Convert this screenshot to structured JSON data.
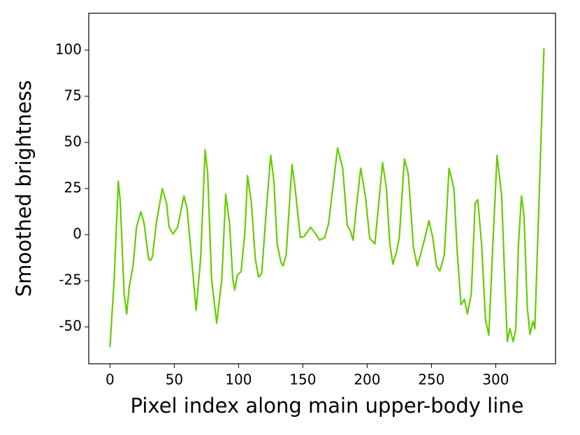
{
  "chart_data": {
    "type": "line",
    "x_label": "Pixel index along main upper-body line",
    "y_label": "Smoothed brightness",
    "color": "#66cc00",
    "x": [
      0,
      3.3,
      6.5,
      8,
      11,
      13,
      15,
      18,
      20.6,
      24,
      26.6,
      30,
      31.5,
      33,
      36,
      40.7,
      44,
      46,
      49,
      52.6,
      57.5,
      60,
      64,
      67,
      70.5,
      74,
      76,
      79,
      83,
      87,
      90,
      93,
      95.5,
      97,
      99,
      102,
      105,
      107,
      110,
      113,
      115.6,
      118,
      122,
      125,
      127.5,
      130,
      133,
      134.6,
      137,
      141.6,
      144,
      148,
      151,
      156,
      160,
      163,
      167,
      170,
      177,
      181,
      184.5,
      187,
      189,
      191.5,
      195,
      198.6,
      202,
      206,
      209,
      212,
      215,
      217.6,
      220,
      223,
      225,
      229,
      232,
      236,
      239,
      241.5,
      245,
      248,
      251,
      254,
      256.6,
      260,
      263.7,
      267.5,
      270,
      273,
      275.6,
      278,
      281,
      284,
      286,
      289,
      292,
      294.6,
      297,
      301,
      304.6,
      307,
      309,
      311,
      313.6,
      315.6,
      317.7,
      320,
      322,
      324.5,
      326.6,
      329,
      330.4,
      337.5
    ],
    "values": [
      -61,
      -24,
      29,
      18,
      -32,
      -43,
      -28,
      -17,
      4,
      12.5,
      6,
      -13,
      -14,
      -12,
      6,
      25,
      17,
      4,
      0.4,
      4,
      21,
      14,
      -17,
      -41,
      -13,
      46,
      33,
      -24,
      -48,
      -24,
      22,
      6,
      -24,
      -30,
      -22,
      -20,
      2,
      32,
      17,
      -13,
      -23,
      -21,
      17,
      43,
      29,
      -5,
      -15,
      -17,
      -11,
      38,
      25,
      -1.5,
      -1,
      4,
      0.4,
      -3,
      -1.5,
      6,
      47,
      36,
      5,
      2,
      -3,
      14,
      36,
      21,
      -2,
      -5,
      17,
      39,
      25,
      -5,
      -16,
      -9,
      -1.5,
      41,
      33,
      -7,
      -17,
      -11,
      -1.5,
      7.6,
      -1.5,
      -17,
      -19.7,
      -11,
      36,
      25,
      -9,
      -38,
      -35,
      -43,
      -32,
      17,
      19,
      -5,
      -46,
      -54.5,
      -17,
      43,
      21,
      -24,
      -58,
      -51,
      -58,
      -51,
      -5,
      21,
      10,
      -39,
      -54,
      -47,
      -51,
      101
    ],
    "xlim": [
      -16.5,
      346.5
    ],
    "ylim": [
      -70,
      120
    ],
    "xticks": [
      0,
      50,
      100,
      150,
      200,
      250,
      300
    ],
    "yticks": [
      -50,
      -25,
      0,
      25,
      50,
      75,
      100
    ]
  }
}
